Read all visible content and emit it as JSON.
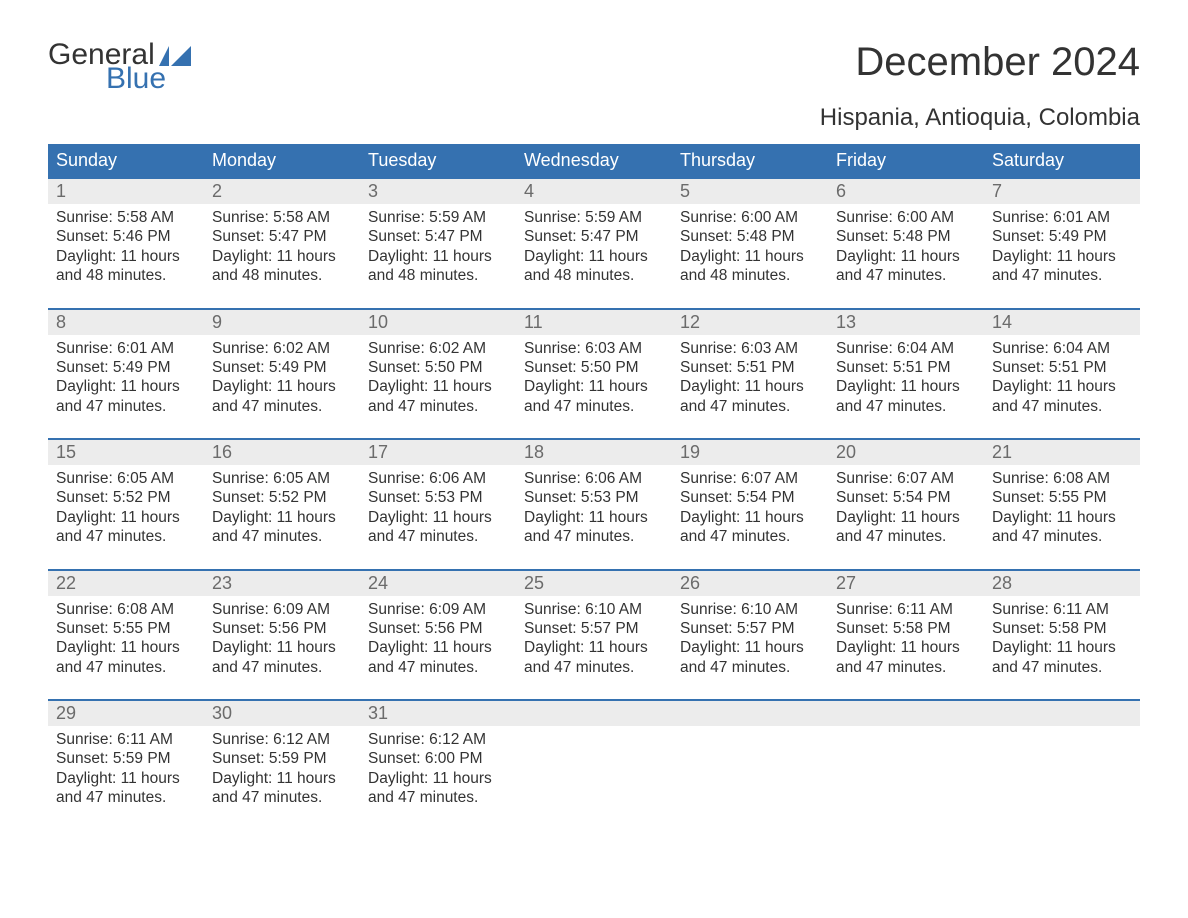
{
  "logo": {
    "word1": "General",
    "word2": "Blue",
    "text_color": "#333333",
    "accent_color": "#3571b0"
  },
  "title": "December 2024",
  "location": "Hispania, Antioquia, Colombia",
  "colors": {
    "header_bg": "#3571b0",
    "header_text": "#ffffff",
    "daynum_bg": "#ececec",
    "daynum_text": "#6b6b6b",
    "body_bg": "#ffffff",
    "body_text": "#333333",
    "row_border": "#3571b0"
  },
  "typography": {
    "title_fontsize": 40,
    "location_fontsize": 24,
    "weekday_fontsize": 18,
    "daynum_fontsize": 18,
    "body_fontsize": 15.5
  },
  "weekdays": [
    "Sunday",
    "Monday",
    "Tuesday",
    "Wednesday",
    "Thursday",
    "Friday",
    "Saturday"
  ],
  "labels": {
    "sunrise": "Sunrise:",
    "sunset": "Sunset:",
    "daylight": "Daylight:"
  },
  "weeks": [
    [
      {
        "n": 1,
        "sunrise": "5:58 AM",
        "sunset": "5:46 PM",
        "daylight": "11 hours and 48 minutes."
      },
      {
        "n": 2,
        "sunrise": "5:58 AM",
        "sunset": "5:47 PM",
        "daylight": "11 hours and 48 minutes."
      },
      {
        "n": 3,
        "sunrise": "5:59 AM",
        "sunset": "5:47 PM",
        "daylight": "11 hours and 48 minutes."
      },
      {
        "n": 4,
        "sunrise": "5:59 AM",
        "sunset": "5:47 PM",
        "daylight": "11 hours and 48 minutes."
      },
      {
        "n": 5,
        "sunrise": "6:00 AM",
        "sunset": "5:48 PM",
        "daylight": "11 hours and 48 minutes."
      },
      {
        "n": 6,
        "sunrise": "6:00 AM",
        "sunset": "5:48 PM",
        "daylight": "11 hours and 47 minutes."
      },
      {
        "n": 7,
        "sunrise": "6:01 AM",
        "sunset": "5:49 PM",
        "daylight": "11 hours and 47 minutes."
      }
    ],
    [
      {
        "n": 8,
        "sunrise": "6:01 AM",
        "sunset": "5:49 PM",
        "daylight": "11 hours and 47 minutes."
      },
      {
        "n": 9,
        "sunrise": "6:02 AM",
        "sunset": "5:49 PM",
        "daylight": "11 hours and 47 minutes."
      },
      {
        "n": 10,
        "sunrise": "6:02 AM",
        "sunset": "5:50 PM",
        "daylight": "11 hours and 47 minutes."
      },
      {
        "n": 11,
        "sunrise": "6:03 AM",
        "sunset": "5:50 PM",
        "daylight": "11 hours and 47 minutes."
      },
      {
        "n": 12,
        "sunrise": "6:03 AM",
        "sunset": "5:51 PM",
        "daylight": "11 hours and 47 minutes."
      },
      {
        "n": 13,
        "sunrise": "6:04 AM",
        "sunset": "5:51 PM",
        "daylight": "11 hours and 47 minutes."
      },
      {
        "n": 14,
        "sunrise": "6:04 AM",
        "sunset": "5:51 PM",
        "daylight": "11 hours and 47 minutes."
      }
    ],
    [
      {
        "n": 15,
        "sunrise": "6:05 AM",
        "sunset": "5:52 PM",
        "daylight": "11 hours and 47 minutes."
      },
      {
        "n": 16,
        "sunrise": "6:05 AM",
        "sunset": "5:52 PM",
        "daylight": "11 hours and 47 minutes."
      },
      {
        "n": 17,
        "sunrise": "6:06 AM",
        "sunset": "5:53 PM",
        "daylight": "11 hours and 47 minutes."
      },
      {
        "n": 18,
        "sunrise": "6:06 AM",
        "sunset": "5:53 PM",
        "daylight": "11 hours and 47 minutes."
      },
      {
        "n": 19,
        "sunrise": "6:07 AM",
        "sunset": "5:54 PM",
        "daylight": "11 hours and 47 minutes."
      },
      {
        "n": 20,
        "sunrise": "6:07 AM",
        "sunset": "5:54 PM",
        "daylight": "11 hours and 47 minutes."
      },
      {
        "n": 21,
        "sunrise": "6:08 AM",
        "sunset": "5:55 PM",
        "daylight": "11 hours and 47 minutes."
      }
    ],
    [
      {
        "n": 22,
        "sunrise": "6:08 AM",
        "sunset": "5:55 PM",
        "daylight": "11 hours and 47 minutes."
      },
      {
        "n": 23,
        "sunrise": "6:09 AM",
        "sunset": "5:56 PM",
        "daylight": "11 hours and 47 minutes."
      },
      {
        "n": 24,
        "sunrise": "6:09 AM",
        "sunset": "5:56 PM",
        "daylight": "11 hours and 47 minutes."
      },
      {
        "n": 25,
        "sunrise": "6:10 AM",
        "sunset": "5:57 PM",
        "daylight": "11 hours and 47 minutes."
      },
      {
        "n": 26,
        "sunrise": "6:10 AM",
        "sunset": "5:57 PM",
        "daylight": "11 hours and 47 minutes."
      },
      {
        "n": 27,
        "sunrise": "6:11 AM",
        "sunset": "5:58 PM",
        "daylight": "11 hours and 47 minutes."
      },
      {
        "n": 28,
        "sunrise": "6:11 AM",
        "sunset": "5:58 PM",
        "daylight": "11 hours and 47 minutes."
      }
    ],
    [
      {
        "n": 29,
        "sunrise": "6:11 AM",
        "sunset": "5:59 PM",
        "daylight": "11 hours and 47 minutes."
      },
      {
        "n": 30,
        "sunrise": "6:12 AM",
        "sunset": "5:59 PM",
        "daylight": "11 hours and 47 minutes."
      },
      {
        "n": 31,
        "sunrise": "6:12 AM",
        "sunset": "6:00 PM",
        "daylight": "11 hours and 47 minutes."
      },
      null,
      null,
      null,
      null
    ]
  ]
}
